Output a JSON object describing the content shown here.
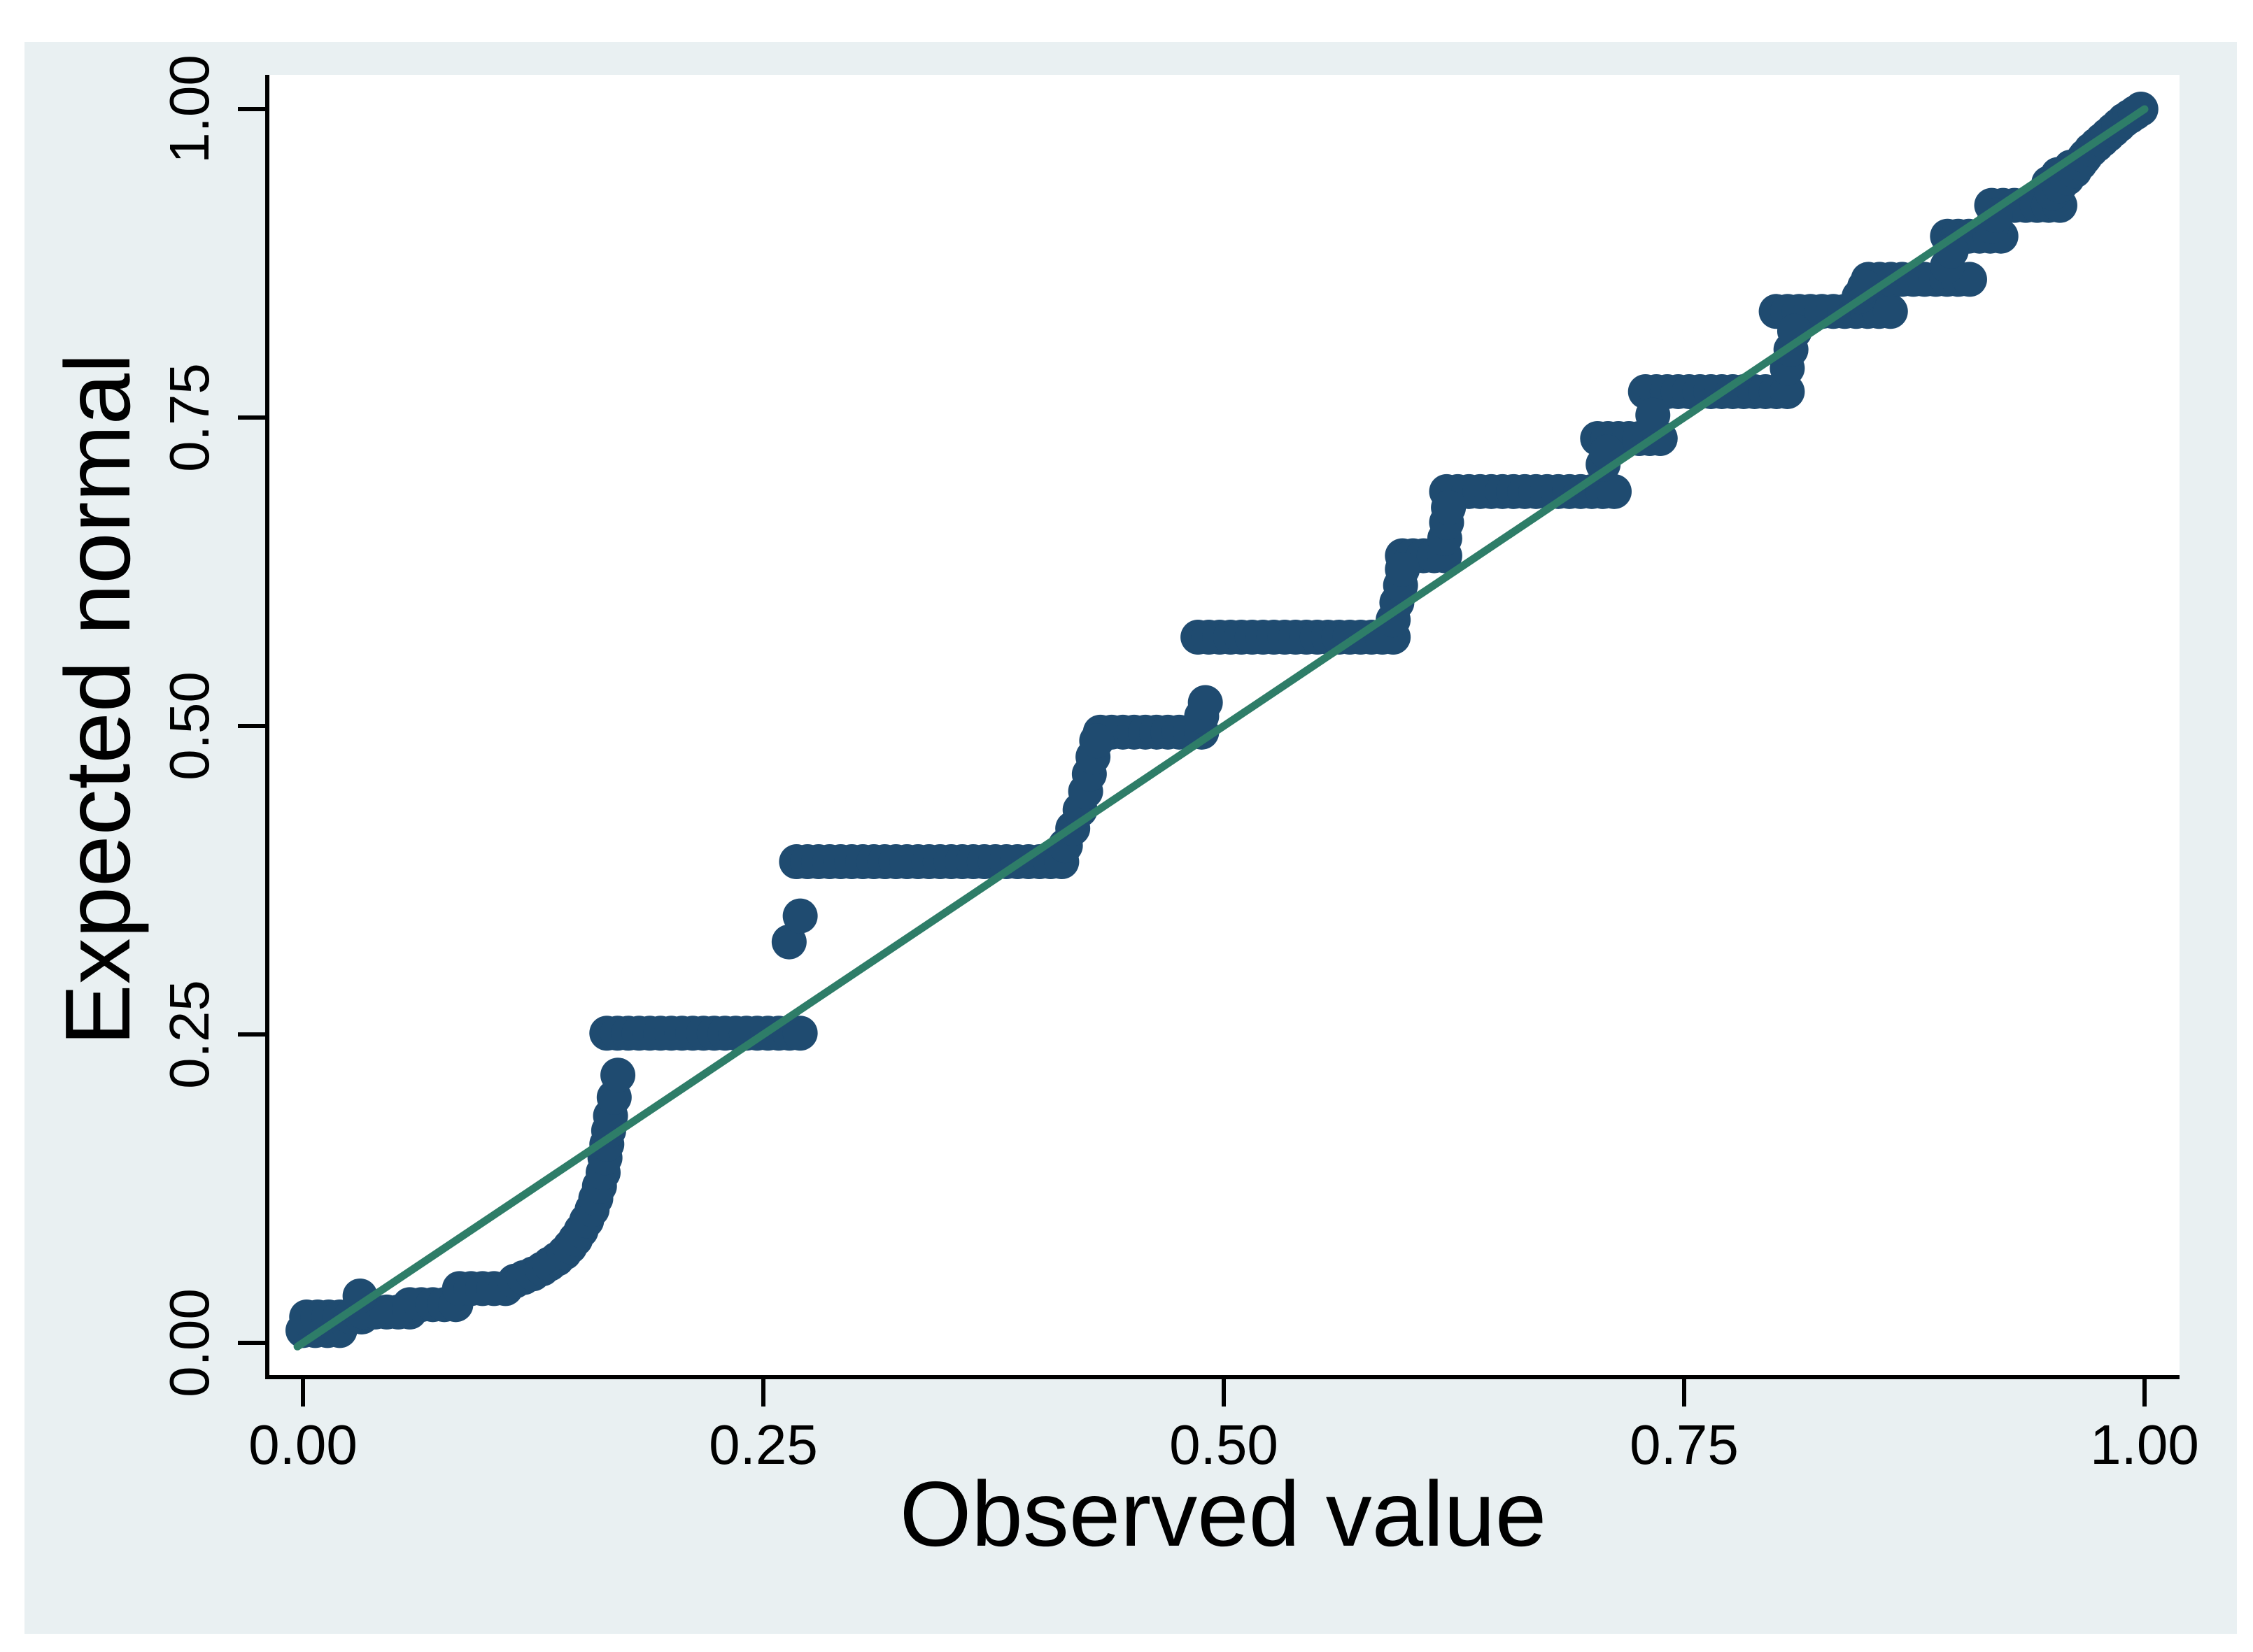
{
  "figure": {
    "page_background": "#ffffff",
    "panel_color": "#e9f0f2",
    "plot_background": "#ffffff",
    "axis_color": "#000000",
    "marker_color": "#1f4b70",
    "reference_line_color": "#2e7d68"
  },
  "chart_data": {
    "type": "scatter",
    "subtype": "normal-probability-pp-plot",
    "title": "",
    "xlabel": "Observed value",
    "ylabel": "Expected normal",
    "grid": false,
    "legend_position": "none",
    "xlim": [
      -0.02,
      1.02
    ],
    "ylim": [
      -0.028,
      1.028
    ],
    "x_ticks": {
      "values": [
        0,
        0.25,
        0.5,
        0.75,
        1
      ],
      "labels": [
        "0.00",
        "0.25",
        "0.50",
        "0.75",
        "1.00"
      ]
    },
    "y_ticks": {
      "values": [
        0,
        0.25,
        0.5,
        0.75,
        1
      ],
      "labels": [
        "0.00",
        "0.25",
        "0.50",
        "0.75",
        "1.00"
      ]
    },
    "reference_line": {
      "type": "y=x",
      "x1": -0.003,
      "y1": -0.003,
      "x2": 1.0,
      "y2": 1.0
    },
    "marker": {
      "shape": "circle",
      "radius_px": 25
    },
    "point_runs": [
      {
        "y": 0.01,
        "x1": 0.0,
        "x2": 0.02
      },
      {
        "y": 0.021,
        "x1": 0.002,
        "x2": 0.032
      },
      {
        "y": 0.025,
        "x1": 0.033,
        "x2": 0.058
      },
      {
        "y": 0.031,
        "x1": 0.058,
        "x2": 0.083
      },
      {
        "y": 0.044,
        "x1": 0.085,
        "x2": 0.11
      },
      {
        "y": 0.251,
        "x1": 0.165,
        "x2": 0.27
      },
      {
        "y": 0.39,
        "x1": 0.268,
        "x2": 0.412
      },
      {
        "y": 0.495,
        "x1": 0.433,
        "x2": 0.488
      },
      {
        "y": 0.572,
        "x1": 0.486,
        "x2": 0.592
      },
      {
        "y": 0.638,
        "x1": 0.597,
        "x2": 0.62
      },
      {
        "y": 0.69,
        "x1": 0.621,
        "x2": 0.712
      },
      {
        "y": 0.733,
        "x1": 0.703,
        "x2": 0.737
      },
      {
        "y": 0.771,
        "x1": 0.729,
        "x2": 0.806
      },
      {
        "y": 0.836,
        "x1": 0.8,
        "x2": 0.862
      },
      {
        "y": 0.862,
        "x1": 0.85,
        "x2": 0.905
      },
      {
        "y": 0.897,
        "x1": 0.893,
        "x2": 0.922
      },
      {
        "y": 0.922,
        "x1": 0.917,
        "x2": 0.954
      }
    ],
    "points": [
      [
        0.031,
        0.038
      ],
      [
        0.115,
        0.05
      ],
      [
        0.12,
        0.053
      ],
      [
        0.125,
        0.056
      ],
      [
        0.13,
        0.06
      ],
      [
        0.134,
        0.064
      ],
      [
        0.138,
        0.068
      ],
      [
        0.142,
        0.073
      ],
      [
        0.145,
        0.078
      ],
      [
        0.148,
        0.084
      ],
      [
        0.151,
        0.091
      ],
      [
        0.154,
        0.099
      ],
      [
        0.157,
        0.108
      ],
      [
        0.159,
        0.117
      ],
      [
        0.161,
        0.127
      ],
      [
        0.163,
        0.138
      ],
      [
        0.164,
        0.15
      ],
      [
        0.165,
        0.161
      ],
      [
        0.166,
        0.172
      ],
      [
        0.167,
        0.184
      ],
      [
        0.169,
        0.199
      ],
      [
        0.171,
        0.217
      ],
      [
        0.264,
        0.325
      ],
      [
        0.27,
        0.346
      ],
      [
        0.414,
        0.403
      ],
      [
        0.418,
        0.417
      ],
      [
        0.422,
        0.432
      ],
      [
        0.425,
        0.447
      ],
      [
        0.427,
        0.461
      ],
      [
        0.429,
        0.475
      ],
      [
        0.431,
        0.488
      ],
      [
        0.488,
        0.508
      ],
      [
        0.49,
        0.519
      ],
      [
        0.592,
        0.586
      ],
      [
        0.594,
        0.6
      ],
      [
        0.596,
        0.614
      ],
      [
        0.597,
        0.627
      ],
      [
        0.62,
        0.652
      ],
      [
        0.621,
        0.665
      ],
      [
        0.622,
        0.677
      ],
      [
        0.706,
        0.712
      ],
      [
        0.708,
        0.722
      ],
      [
        0.733,
        0.752
      ],
      [
        0.806,
        0.79
      ],
      [
        0.808,
        0.805
      ],
      [
        0.81,
        0.82
      ],
      [
        0.845,
        0.848
      ],
      [
        0.848,
        0.856
      ],
      [
        0.893,
        0.873
      ],
      [
        0.895,
        0.885
      ],
      [
        0.917,
        0.905
      ],
      [
        0.919,
        0.914
      ],
      [
        0.948,
        0.94
      ],
      [
        0.953,
        0.947
      ],
      [
        0.96,
        0.953
      ],
      [
        0.967,
        0.96
      ],
      [
        0.95,
        0.932
      ],
      [
        0.954,
        0.938
      ],
      [
        0.958,
        0.944
      ],
      [
        0.962,
        0.95
      ],
      [
        0.965,
        0.956
      ],
      [
        0.968,
        0.962
      ],
      [
        0.971,
        0.967
      ],
      [
        0.974,
        0.971
      ],
      [
        0.977,
        0.975
      ],
      [
        0.98,
        0.979
      ],
      [
        0.983,
        0.983
      ],
      [
        0.986,
        0.987
      ],
      [
        0.989,
        0.991
      ],
      [
        0.992,
        0.994
      ],
      [
        0.995,
        0.997
      ],
      [
        0.998,
        1.0
      ]
    ]
  }
}
